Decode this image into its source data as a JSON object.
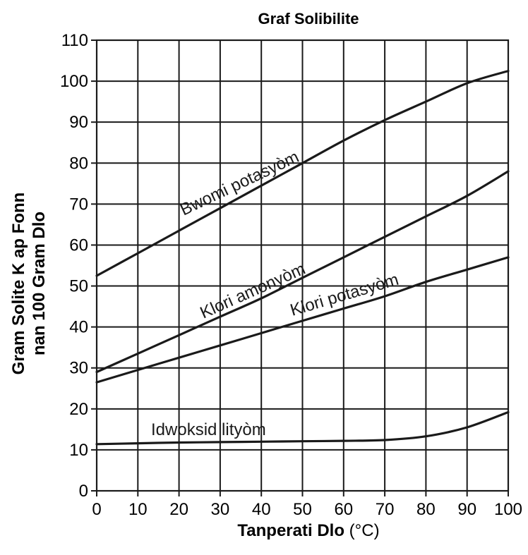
{
  "chart_data": {
    "type": "line",
    "title": "Graf Solibilite",
    "xlabel": "Tanperati Dlo",
    "xlabel_unit": "(°C)",
    "ylabel": [
      "Gram Solite K ap Fonn",
      "nan 100 Gram Dlo"
    ],
    "xlim": [
      0,
      100
    ],
    "ylim": [
      0,
      110
    ],
    "x_ticks": [
      0,
      10,
      20,
      30,
      40,
      50,
      60,
      70,
      80,
      90,
      100
    ],
    "y_ticks": [
      0,
      10,
      20,
      30,
      40,
      50,
      60,
      70,
      80,
      90,
      100,
      110
    ],
    "grid": true,
    "colors": {
      "line": "#1a1a1a",
      "grid": "#1a1a1a",
      "background": "#ffffff"
    },
    "series": [
      {
        "name": "Bwomi potasyòm",
        "x": [
          0,
          10,
          20,
          30,
          40,
          50,
          60,
          70,
          80,
          90,
          100
        ],
        "y": [
          52.5,
          58,
          63.5,
          69,
          74.5,
          80,
          85.5,
          90.5,
          95,
          99.5,
          102.5
        ]
      },
      {
        "name": "Klori amonyòm",
        "x": [
          0,
          10,
          20,
          30,
          40,
          50,
          60,
          70,
          80,
          90,
          100
        ],
        "y": [
          29,
          33.5,
          38,
          42.5,
          47,
          52,
          57,
          62,
          67,
          72,
          78
        ]
      },
      {
        "name": "Klori potasyòm",
        "x": [
          0,
          10,
          20,
          30,
          40,
          50,
          60,
          70,
          80,
          90,
          100
        ],
        "y": [
          26.5,
          29.5,
          32.5,
          35.5,
          38.5,
          41.5,
          44.5,
          47.5,
          51,
          54,
          57
        ]
      },
      {
        "name": "Idwoksid lityòm",
        "x": [
          0,
          10,
          20,
          30,
          40,
          50,
          60,
          70,
          80,
          90,
          100
        ],
        "y": [
          11.4,
          11.6,
          11.8,
          11.9,
          12,
          12.1,
          12.2,
          12.4,
          13.3,
          15.5,
          19.2
        ]
      }
    ]
  }
}
